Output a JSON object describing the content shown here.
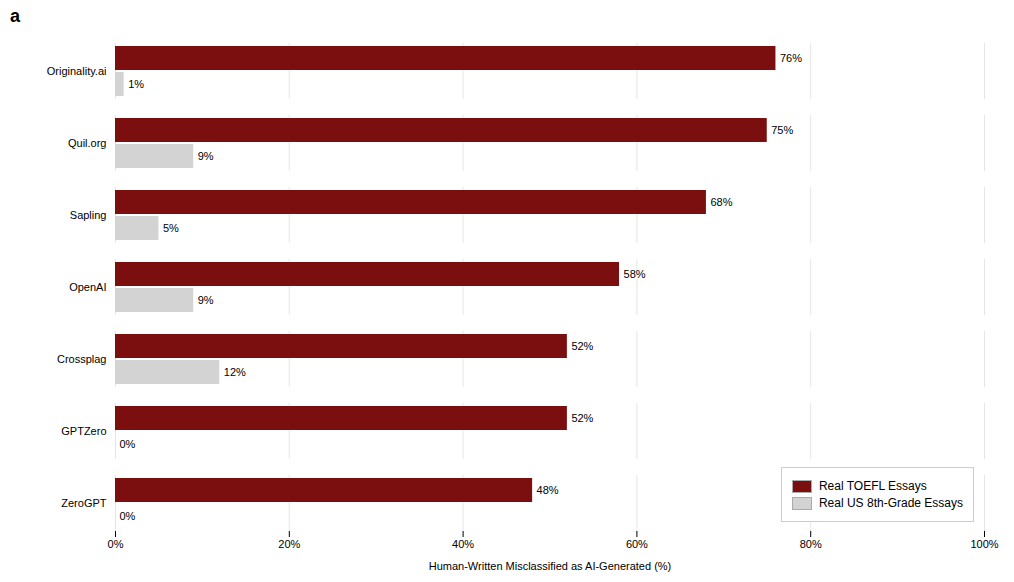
{
  "chart_data": {
    "type": "bar",
    "orientation": "horizontal",
    "title": "a",
    "categories": [
      "Originality.ai",
      "Quil.org",
      "Sapling",
      "OpenAI",
      "Crossplag",
      "GPTZero",
      "ZeroGPT"
    ],
    "series": [
      {
        "name": "Real TOEFL Essays",
        "color": "#7B0F0F",
        "values": [
          0.76,
          0.75,
          0.68,
          0.58,
          0.52,
          0.52,
          0.48
        ],
        "value_labels": [
          "76%",
          "75%",
          "68%",
          "58%",
          "52%",
          "52%",
          "48%"
        ]
      },
      {
        "name": "Real US 8th-Grade Essays",
        "color": "#D3D3D3",
        "values": [
          0.01,
          0.09,
          0.05,
          0.09,
          0.12,
          0.0,
          0.0
        ],
        "value_labels": [
          "1%",
          "9%",
          "5%",
          "9%",
          "12%",
          "0%",
          "0%"
        ]
      }
    ],
    "xlabel": "Human-Written Misclassified as AI-Generated (%)",
    "xlim": [
      0,
      1.0
    ],
    "xticks": [
      {
        "value": 0,
        "label": "0%"
      },
      {
        "value": 0.2,
        "label": "20%"
      },
      {
        "value": 0.4,
        "label": "40%"
      },
      {
        "value": 0.6,
        "label": "60%"
      },
      {
        "value": 0.8,
        "label": "80%"
      },
      {
        "value": 1.0,
        "label": "100%"
      }
    ],
    "grid": true,
    "legend": "lower right",
    "data_labels": true
  }
}
